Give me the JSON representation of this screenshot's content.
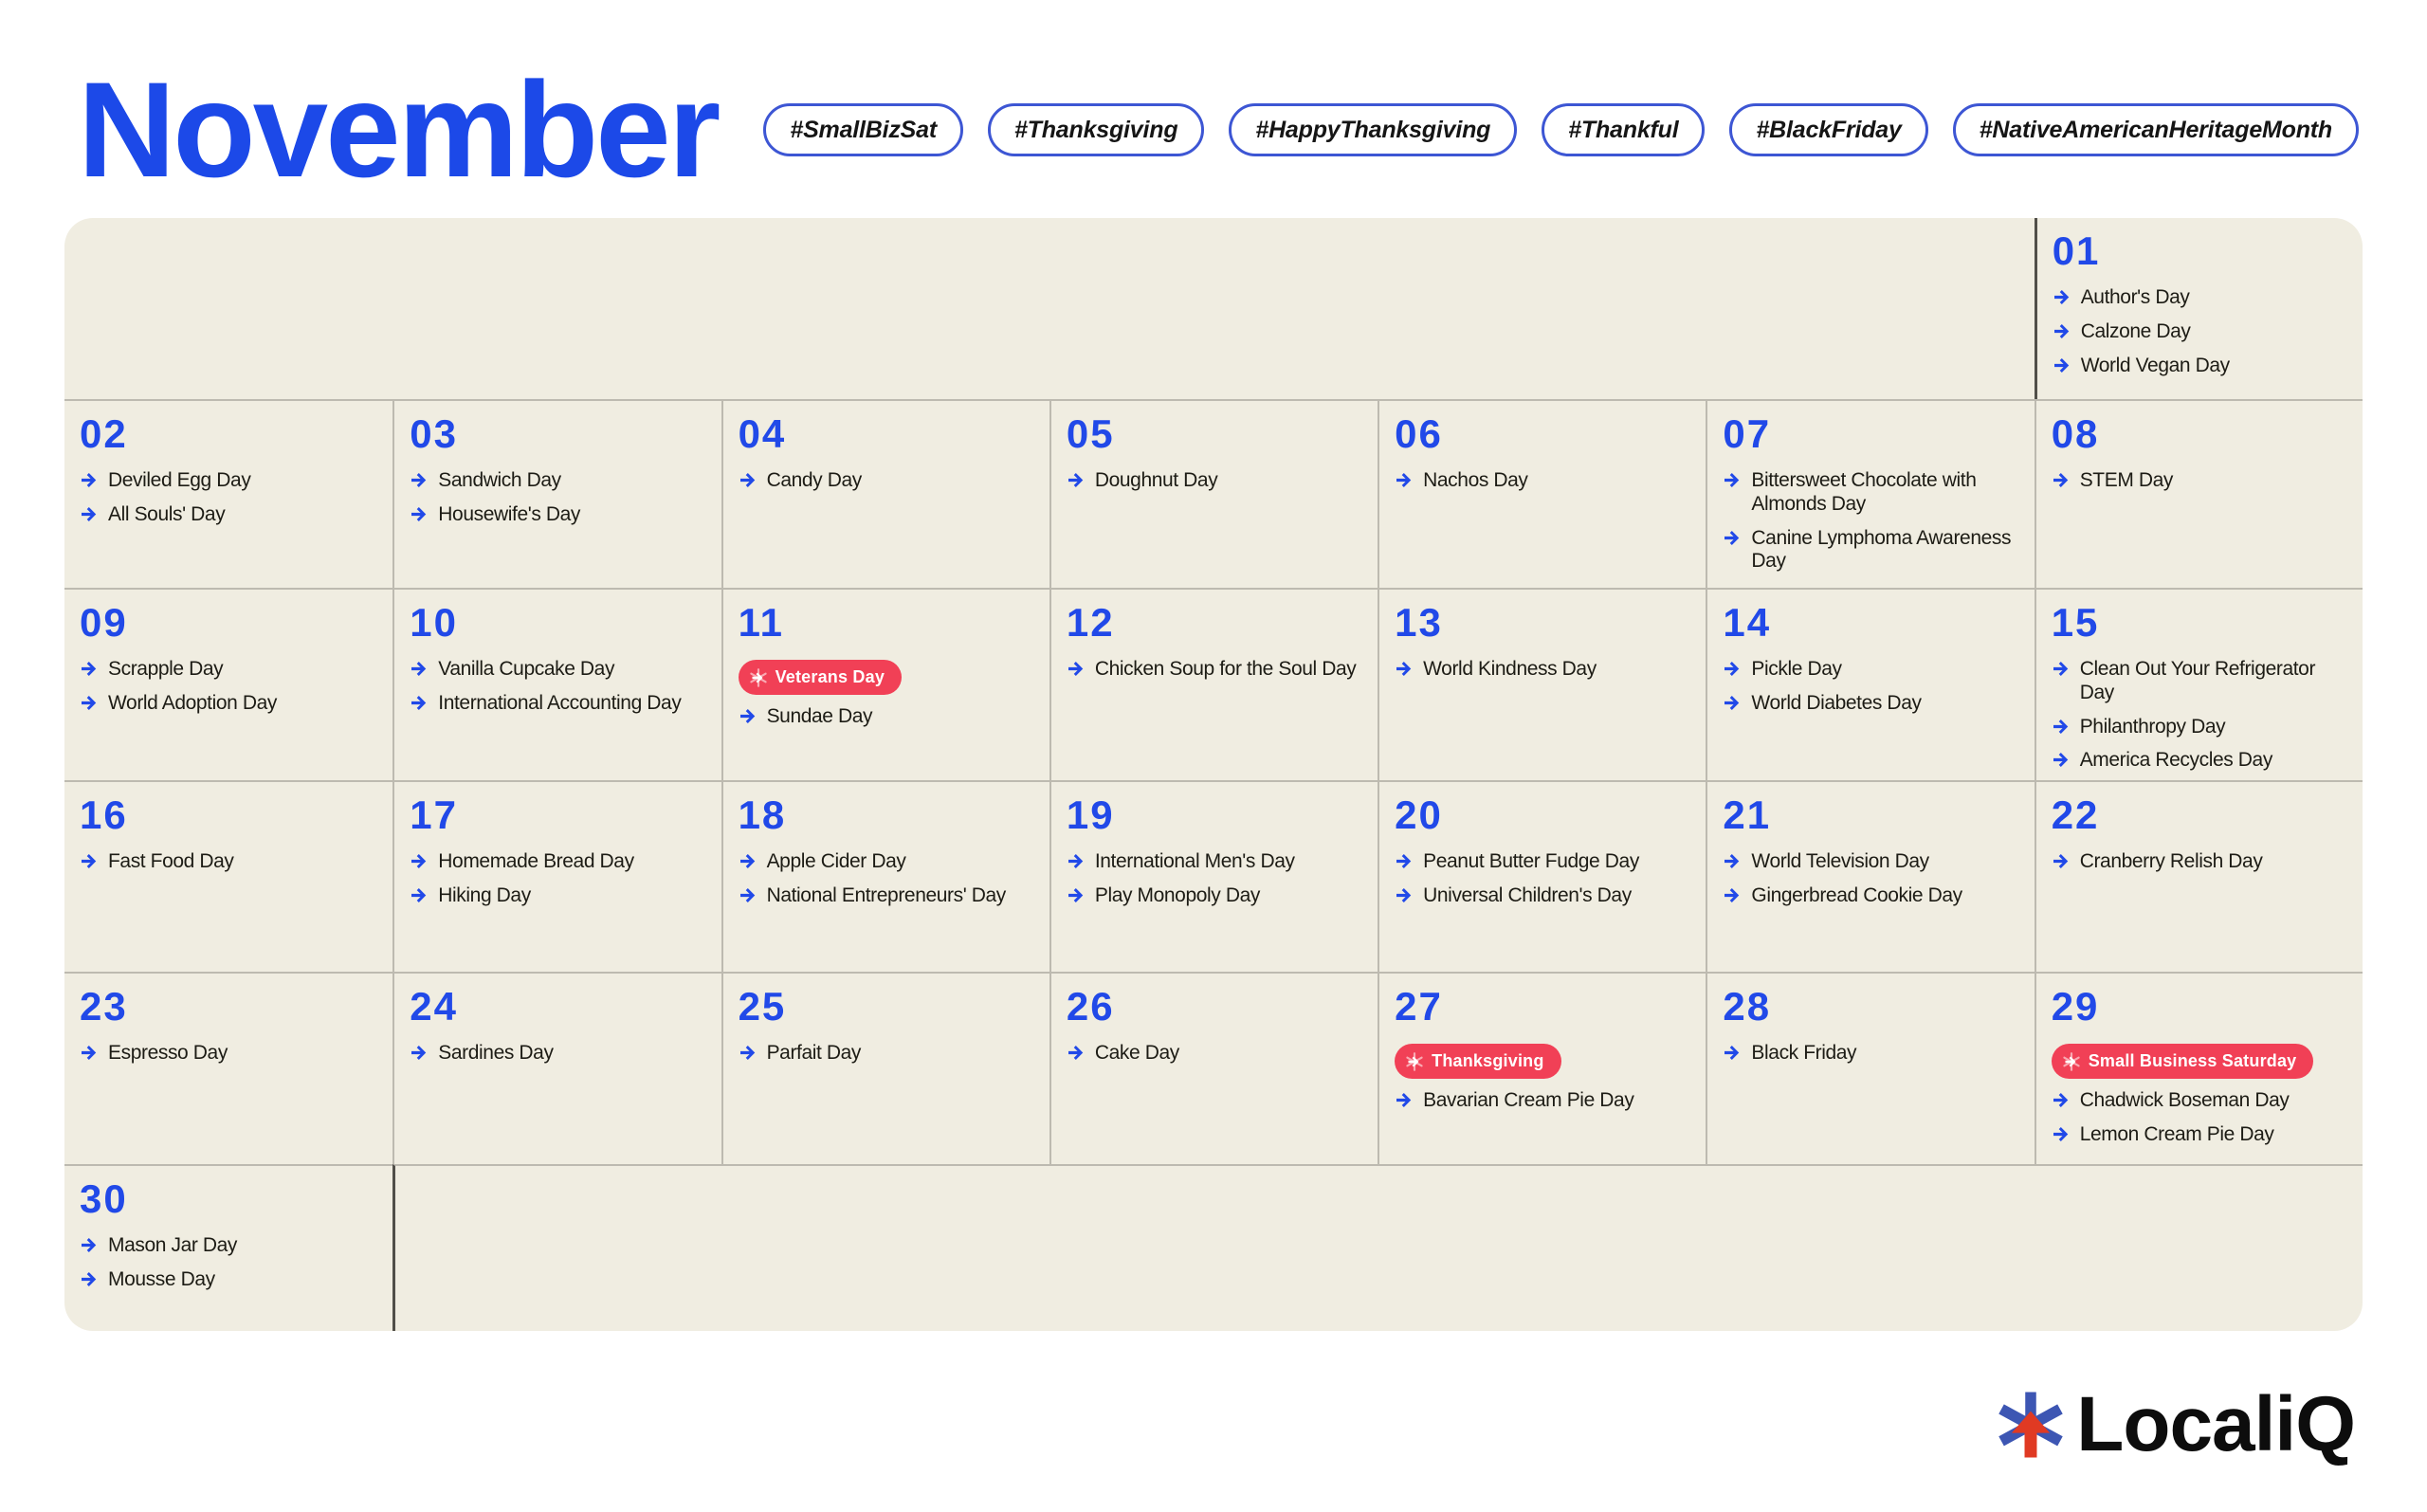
{
  "header": {
    "title": "November",
    "hashtags": [
      "#SmallBizSat",
      "#Thanksgiving",
      "#HappyThanksgiving",
      "#Thankful",
      "#BlackFriday",
      "#NativeAmericanHeritageMonth"
    ]
  },
  "calendar": {
    "days": [
      {
        "num": "01",
        "events": [
          "Author's Day",
          "Calzone Day",
          "World Vegan Day"
        ]
      },
      {
        "num": "02",
        "events": [
          "Deviled Egg Day",
          "All Souls' Day"
        ]
      },
      {
        "num": "03",
        "events": [
          "Sandwich Day",
          "Housewife's Day"
        ]
      },
      {
        "num": "04",
        "events": [
          "Candy Day"
        ]
      },
      {
        "num": "05",
        "events": [
          "Doughnut Day"
        ]
      },
      {
        "num": "06",
        "events": [
          "Nachos Day"
        ]
      },
      {
        "num": "07",
        "events": [
          "Bittersweet Chocolate with Almonds Day",
          "Canine Lymphoma Awareness Day"
        ]
      },
      {
        "num": "08",
        "events": [
          "STEM Day"
        ]
      },
      {
        "num": "09",
        "events": [
          "Scrapple Day",
          "World Adoption Day"
        ]
      },
      {
        "num": "10",
        "events": [
          "Vanilla Cupcake Day",
          "International Accounting Day"
        ]
      },
      {
        "num": "11",
        "badge": "Veterans Day",
        "events": [
          "Sundae Day"
        ]
      },
      {
        "num": "12",
        "events": [
          "Chicken Soup for the Soul Day"
        ]
      },
      {
        "num": "13",
        "events": [
          "World Kindness Day"
        ]
      },
      {
        "num": "14",
        "events": [
          "Pickle Day",
          "World Diabetes Day"
        ]
      },
      {
        "num": "15",
        "events": [
          "Clean Out Your Refrigerator Day",
          "Philanthropy Day",
          "America Recycles Day"
        ]
      },
      {
        "num": "16",
        "events": [
          "Fast Food Day"
        ]
      },
      {
        "num": "17",
        "events": [
          "Homemade Bread Day",
          "Hiking Day"
        ]
      },
      {
        "num": "18",
        "events": [
          "Apple Cider Day",
          "National Entrepreneurs' Day"
        ]
      },
      {
        "num": "19",
        "events": [
          "International Men's Day",
          "Play Monopoly Day"
        ]
      },
      {
        "num": "20",
        "events": [
          "Peanut Butter Fudge Day",
          "Universal Children's Day"
        ]
      },
      {
        "num": "21",
        "events": [
          "World Television Day",
          "Gingerbread Cookie Day"
        ]
      },
      {
        "num": "22",
        "events": [
          "Cranberry Relish Day"
        ]
      },
      {
        "num": "23",
        "events": [
          "Espresso Day"
        ]
      },
      {
        "num": "24",
        "events": [
          "Sardines Day"
        ]
      },
      {
        "num": "25",
        "events": [
          "Parfait Day"
        ]
      },
      {
        "num": "26",
        "events": [
          "Cake Day"
        ]
      },
      {
        "num": "27",
        "badge": "Thanksgiving",
        "events": [
          "Bavarian Cream Pie Day"
        ]
      },
      {
        "num": "28",
        "events": [
          "Black Friday"
        ]
      },
      {
        "num": "29",
        "badge": "Small Business Saturday",
        "events": [
          "Chadwick Boseman Day",
          "Lemon Cream Pie Day"
        ]
      },
      {
        "num": "30",
        "events": [
          "Mason Jar Day",
          "Mousse Day"
        ]
      }
    ]
  },
  "footer": {
    "brand": "LocaliQ"
  },
  "colors": {
    "accent_blue": "#1c49e8",
    "badge_red": "#f14056",
    "cell_beige": "#f0ede1",
    "grid_line_light": "#bdbab0",
    "grid_line_dark": "#514f49",
    "hashtag_border": "#3d56d4",
    "logo_blue": "#3d56b3",
    "logo_red": "#e03a23"
  }
}
